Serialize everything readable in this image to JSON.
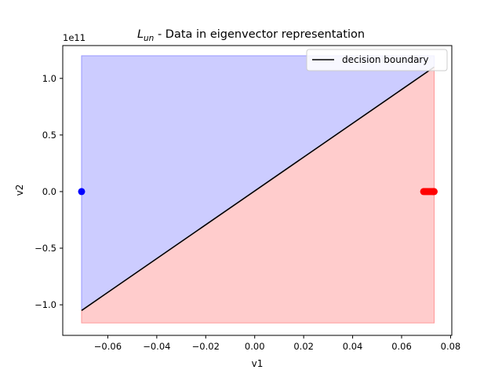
{
  "chart_data": {
    "type": "scatter",
    "title": "L_un - Data in eigenvector representation",
    "title_math": "L",
    "title_math_sub": "un",
    "title_rest": " - Data in eigenvector representation",
    "xlabel": "v1",
    "ylabel": "v2",
    "y_offset_label": "1e11",
    "xlim": [
      -0.0784,
      0.0805
    ],
    "ylim": [
      -127000000000.0,
      129000000000.0
    ],
    "x_ticks": [
      -0.06,
      -0.04,
      -0.02,
      0.0,
      0.02,
      0.04,
      0.06,
      0.08
    ],
    "x_tick_labels": [
      "−0.06",
      "−0.04",
      "−0.02",
      "0.00",
      "0.02",
      "0.04",
      "0.06",
      "0.08"
    ],
    "y_ticks": [
      -100000000000.0,
      -50000000000.0,
      0,
      50000000000.0,
      100000000000.0
    ],
    "y_tick_labels": [
      "−1.0",
      "−0.5",
      "0.0",
      "0.5",
      "1.0"
    ],
    "regions": [
      {
        "name": "blue region",
        "color": "#ccccff",
        "edge": "#9999ff",
        "points": [
          [
            -0.0707,
            120000000000.0
          ],
          [
            0.0733,
            120000000000.0
          ],
          [
            0.0733,
            110000000000.0
          ],
          [
            -0.0707,
            -105000000000.0
          ]
        ]
      },
      {
        "name": "red region",
        "color": "#ffcccc",
        "edge": "#ff9999",
        "points": [
          [
            -0.0707,
            -105000000000.0
          ],
          [
            0.0733,
            110000000000.0
          ],
          [
            0.0733,
            -116000000000.0
          ],
          [
            -0.0707,
            -116000000000.0
          ]
        ]
      }
    ],
    "boundary": {
      "name": "decision boundary",
      "color": "#000000",
      "points": [
        [
          -0.0707,
          -105000000000.0
        ],
        [
          0.0733,
          110000000000.0
        ]
      ]
    },
    "series": [
      {
        "color": "#0000ff",
        "points": [
          [
            -0.0707,
            0
          ]
        ]
      },
      {
        "color": "#ff0000",
        "points": [
          [
            0.069,
            0
          ],
          [
            0.0696,
            0
          ],
          [
            0.0702,
            0
          ],
          [
            0.0708,
            0
          ],
          [
            0.0714,
            0
          ],
          [
            0.072,
            0
          ],
          [
            0.0726,
            0
          ],
          [
            0.073,
            0
          ],
          [
            0.0733,
            0
          ]
        ]
      }
    ],
    "legend": {
      "location": "top-right",
      "entries": [
        "decision boundary"
      ]
    }
  }
}
